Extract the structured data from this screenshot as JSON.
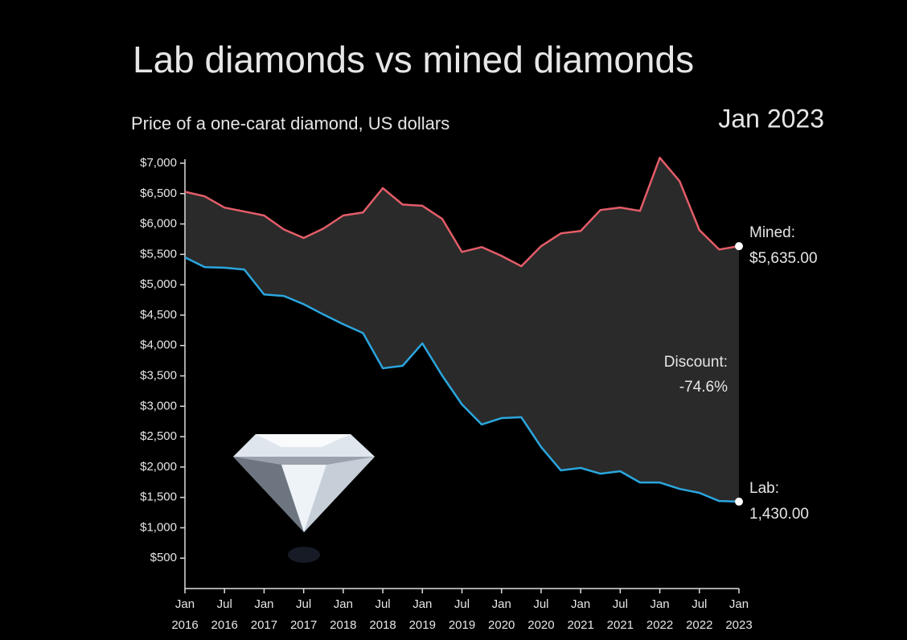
{
  "chart_data": {
    "type": "line",
    "title": "Lab diamonds vs mined diamonds",
    "subtitle": "Price of a one-carat diamond, US dollars",
    "date_label": "Jan 2023",
    "annotation": {
      "label": "Discount:",
      "text": "-74.6%"
    },
    "x": [
      "2016-01",
      "2016-04",
      "2016-07",
      "2016-10",
      "2017-01",
      "2017-04",
      "2017-07",
      "2017-10",
      "2018-01",
      "2018-04",
      "2018-07",
      "2018-10",
      "2019-01",
      "2019-04",
      "2019-07",
      "2019-10",
      "2020-01",
      "2020-04",
      "2020-07",
      "2020-10",
      "2021-01",
      "2021-04",
      "2021-07",
      "2021-10",
      "2022-01",
      "2022-04",
      "2022-07",
      "2022-10",
      "2023-01"
    ],
    "series": [
      {
        "name": "Mined:",
        "color": "#e35d68",
        "values": [
          6530,
          6455,
          6270,
          6205,
          6140,
          5910,
          5770,
          5925,
          6140,
          6190,
          6590,
          6320,
          6300,
          6085,
          5540,
          5620,
          5475,
          5305,
          5635,
          5845,
          5885,
          6230,
          6270,
          6215,
          7090,
          6705,
          5900,
          5580,
          5635
        ],
        "value_labels": [
          null,
          null,
          null,
          null,
          null,
          null,
          null,
          null,
          null,
          null,
          null,
          null,
          null,
          null,
          null,
          null,
          null,
          null,
          null,
          null,
          null,
          null,
          null,
          null,
          null,
          null,
          null,
          null,
          "$5,635.00"
        ]
      },
      {
        "name": "Lab:",
        "color": "#2ba6de",
        "values": [
          5450,
          5290,
          5280,
          5250,
          4840,
          4815,
          4680,
          4510,
          4350,
          4205,
          3625,
          3665,
          4035,
          3505,
          3030,
          2700,
          2805,
          2820,
          2330,
          1945,
          1985,
          1890,
          1930,
          1745,
          1745,
          1640,
          1575,
          1440,
          1430
        ],
        "value_labels": [
          null,
          null,
          null,
          null,
          null,
          null,
          null,
          null,
          null,
          null,
          null,
          null,
          null,
          null,
          null,
          null,
          null,
          null,
          null,
          null,
          null,
          null,
          null,
          null,
          null,
          null,
          null,
          null,
          "1,430.00"
        ]
      }
    ],
    "area_color": "#2a2a2a",
    "ylim": [
      0,
      7000
    ],
    "yticks": [
      {
        "value": 500,
        "label": "$500"
      },
      {
        "value": 1000,
        "label": "$1,000"
      },
      {
        "value": 1500,
        "label": "$1,500"
      },
      {
        "value": 2000,
        "label": "$2,000"
      },
      {
        "value": 2500,
        "label": "$2,500"
      },
      {
        "value": 3000,
        "label": "$3,000"
      },
      {
        "value": 3500,
        "label": "$3,500"
      },
      {
        "value": 4000,
        "label": "$4,000"
      },
      {
        "value": 4500,
        "label": "$4,500"
      },
      {
        "value": 5000,
        "label": "$5,000"
      },
      {
        "value": 5500,
        "label": "$5,500"
      },
      {
        "value": 6000,
        "label": "$6,000"
      },
      {
        "value": 6500,
        "label": "$6,500"
      },
      {
        "value": 7000,
        "label": "$7,000"
      }
    ],
    "xlim": [
      "2016-01",
      "2023-01"
    ],
    "xticks": [
      {
        "value": "2016-01",
        "label": "Jan 2016"
      },
      {
        "value": "2016-07",
        "label": "Jul 2016"
      },
      {
        "value": "2017-01",
        "label": "Jan 2017"
      },
      {
        "value": "2017-07",
        "label": "Jul 2017"
      },
      {
        "value": "2018-01",
        "label": "Jan 2018"
      },
      {
        "value": "2018-07",
        "label": "Jul 2018"
      },
      {
        "value": "2019-01",
        "label": "Jan 2019"
      },
      {
        "value": "2019-07",
        "label": "Jul 2019"
      },
      {
        "value": "2020-01",
        "label": "Jan 2020"
      },
      {
        "value": "2020-07",
        "label": "Jul 2020"
      },
      {
        "value": "2021-01",
        "label": "Jan 2021"
      },
      {
        "value": "2021-07",
        "label": "Jul 2021"
      },
      {
        "value": "2022-01",
        "label": "Jan 2022"
      },
      {
        "value": "2022-07",
        "label": "Jul 2022"
      },
      {
        "value": "2023-01",
        "label": "Jan 2023"
      }
    ],
    "grid": false
  }
}
